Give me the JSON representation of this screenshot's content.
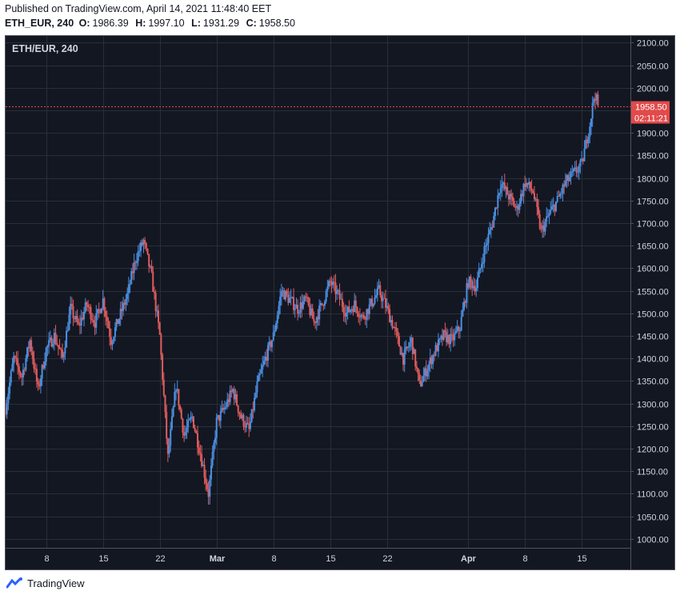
{
  "header": {
    "published": "Published on TradingView.com, April 14, 2021 11:48:40 EET",
    "symbol": "ETH_EUR, 240",
    "o_label": "O:",
    "o_value": "1986.39",
    "h_label": "H:",
    "h_value": "1997.10",
    "l_label": "L:",
    "l_value": "1931.29",
    "c_label": "C:",
    "c_value": "1958.50"
  },
  "footer": {
    "brand": "TradingView"
  },
  "colors": {
    "background": "#131722",
    "grid": "#2a2e39",
    "up": "#4a90e2",
    "down": "#e05c5c",
    "last_price": "#e24a4a",
    "axis_text": "#d1d4dc"
  },
  "chart_data": {
    "type": "candlestick",
    "title": "ETH/EUR, 240",
    "timeframe": "240",
    "y_ticks": [
      1000,
      1050,
      1100,
      1150,
      1200,
      1250,
      1300,
      1350,
      1400,
      1450,
      1500,
      1550,
      1600,
      1650,
      1700,
      1750,
      1800,
      1850,
      1900,
      1950,
      2000,
      2050,
      2100
    ],
    "y_tick_labels": [
      "1000.00",
      "1050.00",
      "1100.00",
      "1150.00",
      "1200.00",
      "1250.00",
      "1300.00",
      "1350.00",
      "1400.00",
      "1450.00",
      "1500.00",
      "1550.00",
      "1600.00",
      "1650.00",
      "1700.00",
      "1750.00",
      "1800.00",
      "1850.00",
      "1900.00",
      "1950.00",
      "2000.00",
      "2050.00",
      "2100.00"
    ],
    "ylim": [
      980,
      2115
    ],
    "x_ticks": [
      {
        "label": "8",
        "day": 8,
        "bold": false
      },
      {
        "label": "15",
        "day": 15,
        "bold": false
      },
      {
        "label": "22",
        "day": 22,
        "bold": false
      },
      {
        "label": "Mar",
        "day": 29,
        "bold": true
      },
      {
        "label": "8",
        "day": 36,
        "bold": false
      },
      {
        "label": "15",
        "day": 43,
        "bold": false
      },
      {
        "label": "22",
        "day": 50,
        "bold": false
      },
      {
        "label": "Apr",
        "day": 60,
        "bold": true
      },
      {
        "label": "8",
        "day": 67,
        "bold": false
      },
      {
        "label": "15",
        "day": 74,
        "bold": false
      }
    ],
    "xlim_days": [
      3.0,
      80.0
    ],
    "x_note": "days counted from Feb 1, 2021",
    "last_price": {
      "value": 1958.5,
      "label": "1958.50",
      "countdown": "02:11:21"
    },
    "close_path": [
      [
        3.0,
        1290
      ],
      [
        4.0,
        1400
      ],
      [
        5.0,
        1360
      ],
      [
        6.0,
        1440
      ],
      [
        7.0,
        1330
      ],
      [
        8.0,
        1420
      ],
      [
        9.0,
        1450
      ],
      [
        10.0,
        1400
      ],
      [
        11.0,
        1510
      ],
      [
        12.0,
        1470
      ],
      [
        13.0,
        1520
      ],
      [
        14.0,
        1480
      ],
      [
        15.0,
        1530
      ],
      [
        16.0,
        1440
      ],
      [
        17.0,
        1490
      ],
      [
        18.0,
        1540
      ],
      [
        19.0,
        1620
      ],
      [
        20.0,
        1660
      ],
      [
        21.0,
        1580
      ],
      [
        22.0,
        1450
      ],
      [
        23.0,
        1180
      ],
      [
        24.0,
        1340
      ],
      [
        25.0,
        1230
      ],
      [
        26.0,
        1270
      ],
      [
        27.0,
        1190
      ],
      [
        28.0,
        1100
      ],
      [
        29.0,
        1260
      ],
      [
        30.0,
        1290
      ],
      [
        31.0,
        1330
      ],
      [
        32.0,
        1270
      ],
      [
        33.0,
        1240
      ],
      [
        34.0,
        1340
      ],
      [
        35.0,
        1400
      ],
      [
        36.0,
        1450
      ],
      [
        37.0,
        1550
      ],
      [
        38.0,
        1530
      ],
      [
        39.0,
        1510
      ],
      [
        40.0,
        1530
      ],
      [
        41.0,
        1480
      ],
      [
        42.0,
        1520
      ],
      [
        43.0,
        1570
      ],
      [
        44.0,
        1540
      ],
      [
        45.0,
        1500
      ],
      [
        46.0,
        1520
      ],
      [
        47.0,
        1490
      ],
      [
        48.0,
        1520
      ],
      [
        49.0,
        1550
      ],
      [
        50.0,
        1510
      ],
      [
        51.0,
        1460
      ],
      [
        52.0,
        1400
      ],
      [
        53.0,
        1440
      ],
      [
        54.0,
        1340
      ],
      [
        55.0,
        1380
      ],
      [
        56.0,
        1420
      ],
      [
        57.0,
        1450
      ],
      [
        58.0,
        1440
      ],
      [
        59.0,
        1470
      ],
      [
        60.0,
        1570
      ],
      [
        61.0,
        1560
      ],
      [
        62.0,
        1640
      ],
      [
        63.0,
        1700
      ],
      [
        64.0,
        1790
      ],
      [
        65.0,
        1760
      ],
      [
        66.0,
        1730
      ],
      [
        67.0,
        1790
      ],
      [
        68.0,
        1770
      ],
      [
        69.0,
        1680
      ],
      [
        70.0,
        1720
      ],
      [
        71.0,
        1750
      ],
      [
        72.0,
        1790
      ],
      [
        73.0,
        1810
      ],
      [
        74.0,
        1830
      ],
      [
        75.0,
        1920
      ],
      [
        75.6,
        1990
      ],
      [
        76.0,
        1958.5
      ]
    ]
  }
}
